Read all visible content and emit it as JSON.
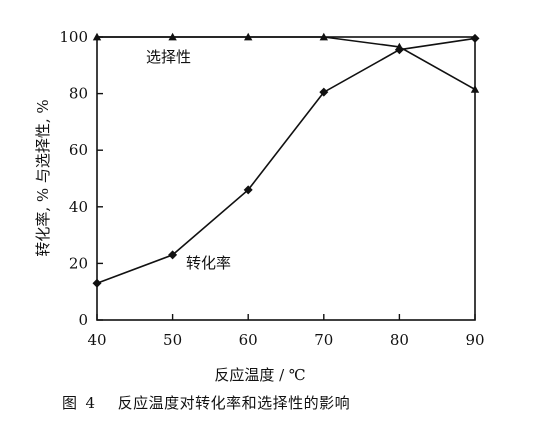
{
  "chart_data": {
    "type": "line",
    "title": "",
    "xlabel": "反应温度 / ℃",
    "ylabel": "转化率, % 与选择性, %",
    "xlim": [
      40,
      90
    ],
    "ylim": [
      0,
      100
    ],
    "x_ticks": [
      40,
      50,
      60,
      70,
      80,
      90
    ],
    "y_ticks": [
      0,
      20,
      40,
      60,
      80,
      100
    ],
    "grid": false,
    "x": [
      40,
      50,
      60,
      70,
      80,
      90
    ],
    "series": [
      {
        "name": "转化率",
        "marker": "diamond",
        "values": [
          13,
          23,
          46,
          80.5,
          95.5,
          99.5
        ]
      },
      {
        "name": "选择性",
        "marker": "triangle",
        "values": [
          100,
          100,
          100,
          100,
          96.5,
          81.5
        ]
      }
    ]
  },
  "caption": {
    "prefix": "图",
    "number": "4",
    "text": "反应温度对转化率和选择性的影响"
  }
}
